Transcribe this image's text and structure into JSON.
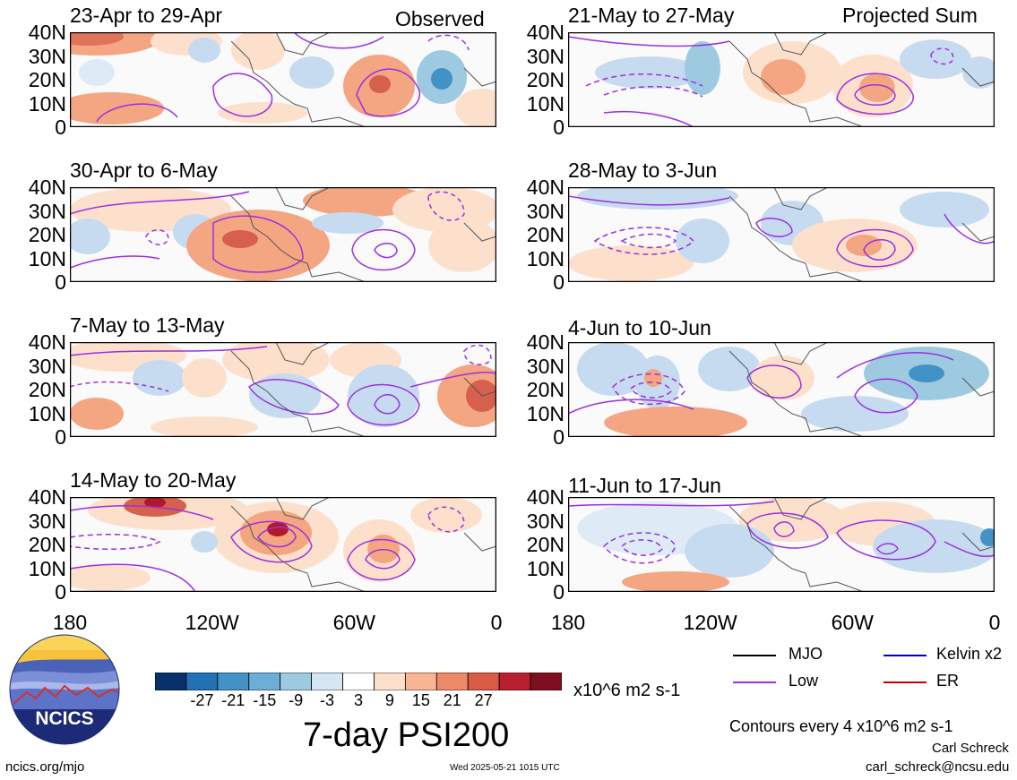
{
  "panels": [
    {
      "title": "23-Apr to 29-Apr",
      "note": "Observed"
    },
    {
      "title": "21-May to 27-May",
      "note": "Projected Sum"
    },
    {
      "title": "30-Apr to 6-May",
      "note": ""
    },
    {
      "title": "28-May to 3-Jun",
      "note": ""
    },
    {
      "title": "7-May to 13-May",
      "note": ""
    },
    {
      "title": "4-Jun to 10-Jun",
      "note": ""
    },
    {
      "title": "14-May to 20-May",
      "note": ""
    },
    {
      "title": "11-Jun to 17-Jun",
      "note": ""
    }
  ],
  "lat_labels": [
    "40N",
    "30N",
    "20N",
    "10N",
    "0"
  ],
  "lon_labels": [
    "180",
    "120W",
    "60W",
    "0"
  ],
  "colorbar": {
    "ticks": [
      "-27",
      "-21",
      "-15",
      "-9",
      "-3",
      "3",
      "9",
      "15",
      "21",
      "27"
    ],
    "units": "x10^6 m2 s-1",
    "colors": [
      "#08306b",
      "#2171b5",
      "#4292c6",
      "#6baed6",
      "#9ecae1",
      "#d6e7f3",
      "#ffffff",
      "#fde0cc",
      "#f8b493",
      "#ee8a68",
      "#d95a45",
      "#b82030",
      "#7f0f20"
    ]
  },
  "title": "7-day PSI200",
  "legend": [
    {
      "label": "MJO",
      "color": "#000000"
    },
    {
      "label": "Kelvin x2",
      "color": "#0000cc"
    },
    {
      "label": "Low",
      "color": "#9b30e0"
    },
    {
      "label": "ER",
      "color": "#cc0000"
    }
  ],
  "contour_note": "Contours every 4 x10^6 m2 s-1",
  "author": "Carl Schreck",
  "email": "carl_schreck@ncsu.edu",
  "site": "ncics.org/mjo",
  "timestamp": "Wed 2025-05-21 1015 UTC",
  "logo_text": "NCICS"
}
